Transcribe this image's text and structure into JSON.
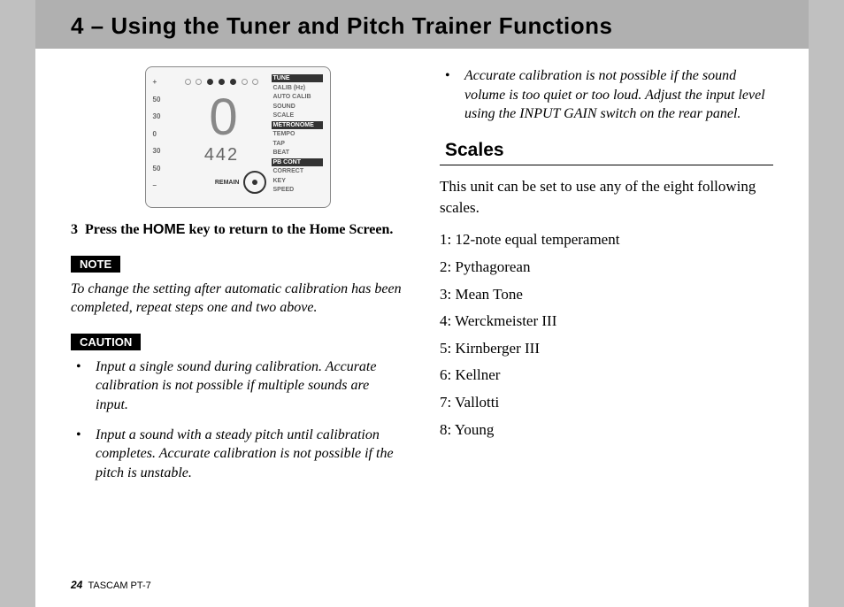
{
  "header": {
    "title": "4 – Using the Tuner and Pitch Trainer Functions"
  },
  "lcd": {
    "left_scale": [
      "+",
      "50",
      "30",
      "0",
      "30",
      "50",
      "–"
    ],
    "big_digit": "0",
    "sub_digit": "442",
    "remain_label": "REMAIN",
    "right_labels": [
      {
        "text": "TUNE",
        "inv": true
      },
      {
        "text": "CALIB (Hz)",
        "inv": false
      },
      {
        "text": "AUTO CALIB",
        "inv": false
      },
      {
        "text": "SOUND",
        "inv": false
      },
      {
        "text": "SCALE",
        "inv": false
      },
      {
        "text": "METRONOME",
        "inv": true
      },
      {
        "text": "TEMPO",
        "inv": false
      },
      {
        "text": "TAP",
        "inv": false
      },
      {
        "text": "BEAT",
        "inv": false
      },
      {
        "text": "PB CONT",
        "inv": true
      },
      {
        "text": "CORRECT",
        "inv": false
      },
      {
        "text": "KEY",
        "inv": false
      },
      {
        "text": "SPEED",
        "inv": false
      }
    ]
  },
  "step3": {
    "num": "3",
    "pre": "Press the ",
    "key": "HOME",
    "post": " key to return to the Home Screen."
  },
  "note": {
    "tag": "NOTE",
    "text": "To change the setting after automatic calibration has been completed, repeat steps one and two above."
  },
  "caution": {
    "tag": "CAUTION",
    "items": [
      "Input a single sound during calibration. Accurate calibration is not possible if multiple sounds are input.",
      "Input a sound with a steady pitch until calibration completes. Accurate calibration is not possible if the pitch is unstable.",
      "Accurate calibration is not possible if the sound volume is too quiet or too loud. Adjust the input level using the INPUT GAIN switch on the rear panel."
    ]
  },
  "scales": {
    "heading": "Scales",
    "intro": "This unit can be set to use any of the eight following scales.",
    "list": [
      "1: 12-note equal temperament",
      "2: Pythagorean",
      "3: Mean Tone",
      "4: Werckmeister III",
      "5: Kirnberger III",
      "6: Kellner",
      "7: Vallotti",
      "8: Young"
    ]
  },
  "footer": {
    "page": "24",
    "product": "TASCAM  PT-7"
  }
}
